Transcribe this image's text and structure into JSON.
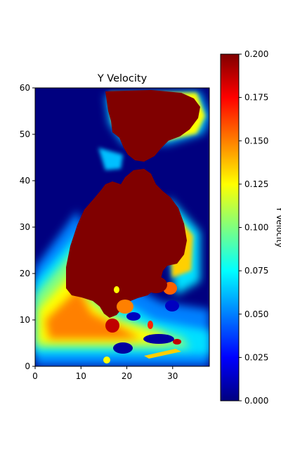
{
  "chart_data": [
    {
      "type": "heatmap",
      "title": "Y Velocity",
      "xlabel": "",
      "ylabel": "",
      "xlim": [
        0,
        38
      ],
      "ylim": [
        0,
        60
      ],
      "x_ticks": [
        "0",
        "10",
        "20",
        "30"
      ],
      "y_ticks": [
        "0",
        "10",
        "20",
        "30",
        "40",
        "50",
        "60"
      ],
      "colormap": "jet",
      "value_range": [
        0.0,
        0.2
      ],
      "regions": [
        {
          "name": "upper plume",
          "approx_value": 0.2,
          "x_range": [
            15,
            38
          ],
          "y_range": [
            44,
            60
          ]
        },
        {
          "name": "main plume",
          "approx_value": 0.2,
          "x_range": [
            8,
            33
          ],
          "y_range": [
            7,
            40
          ]
        },
        {
          "name": "background",
          "approx_value": 0.0
        }
      ]
    },
    {
      "type": "colorbar",
      "label": "Y Velocity",
      "ticks": [
        "0.000",
        "0.025",
        "0.050",
        "0.075",
        "0.100",
        "0.125",
        "0.150",
        "0.175",
        "0.200"
      ],
      "tick_values": [
        0.0,
        0.025,
        0.05,
        0.075,
        0.1,
        0.125,
        0.15,
        0.175,
        0.2
      ],
      "colors": [
        "#00007f",
        "#0000ff",
        "#007fff",
        "#00ffff",
        "#7fff7f",
        "#ffff00",
        "#ff7f00",
        "#ff0000",
        "#7f0000"
      ]
    }
  ]
}
